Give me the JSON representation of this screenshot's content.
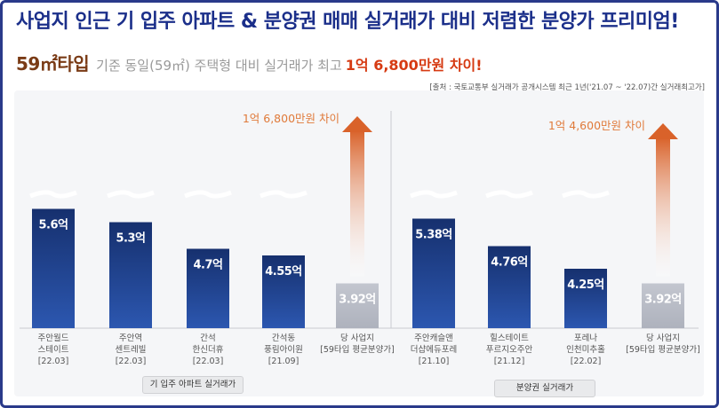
{
  "header": {
    "title": "사업지 인근 기 입주 아파트 & 분양권 매매 실거래가 대비 저렴한 분양가 프리미엄!",
    "subtitle_type": "59㎡타입",
    "subtitle_mid": "기준 동일(59㎡) 주택형 대비 실거래가 최고",
    "subtitle_strong": "1억 6,800만원 차이!",
    "source": "[출처 : 국토교통부 실거래가 공개시스템 최근 1년('21.07 ~ '22.07)간 실거래최고가]"
  },
  "chart_data": {
    "type": "bar",
    "unit": "억",
    "colors": {
      "existing": "#1f4597",
      "project": "#b8bcc8",
      "arrow": "#e07a3a",
      "annotation": "#e07a3a"
    },
    "groups": [
      {
        "name": "기 입주 아파트 실거래가",
        "bars": [
          {
            "label": [
              "주안월드",
              "스테이트",
              "[22.03]"
            ],
            "value": 5.6,
            "value_label": "5.6억",
            "kind": "existing"
          },
          {
            "label": [
              "주안역",
              "센트레빌",
              "[22.03]"
            ],
            "value": 5.3,
            "value_label": "5.3억",
            "kind": "existing"
          },
          {
            "label": [
              "간석",
              "한신더휴",
              "[22.03]"
            ],
            "value": 4.7,
            "value_label": "4.7억",
            "kind": "existing"
          },
          {
            "label": [
              "간석동",
              "풍림아이원",
              "[21.09]"
            ],
            "value": 4.55,
            "value_label": "4.55억",
            "kind": "existing"
          },
          {
            "label": [
              "당 사업지",
              "[59타입 평균분양가]"
            ],
            "value": 3.92,
            "value_label": "3.92억",
            "kind": "project"
          }
        ],
        "annotation": "1억 6,800만원 차이"
      },
      {
        "name": "분양권 실거래가",
        "bars": [
          {
            "label": [
              "주안캐슬앤",
              "더샵에듀포레",
              "[21.10]"
            ],
            "value": 5.38,
            "value_label": "5.38억",
            "kind": "existing"
          },
          {
            "label": [
              "힐스테이트",
              "푸르지오주안",
              "[21.12]"
            ],
            "value": 4.76,
            "value_label": "4.76억",
            "kind": "existing"
          },
          {
            "label": [
              "포레나",
              "인천미추홀",
              "[22.02]"
            ],
            "value": 4.25,
            "value_label": "4.25억",
            "kind": "existing"
          },
          {
            "label": [
              "당 사업지",
              "[59타입 평균분양가]"
            ],
            "value": 3.92,
            "value_label": "3.92억",
            "kind": "project"
          }
        ],
        "annotation": "1억 4,600만원 차이"
      }
    ]
  }
}
